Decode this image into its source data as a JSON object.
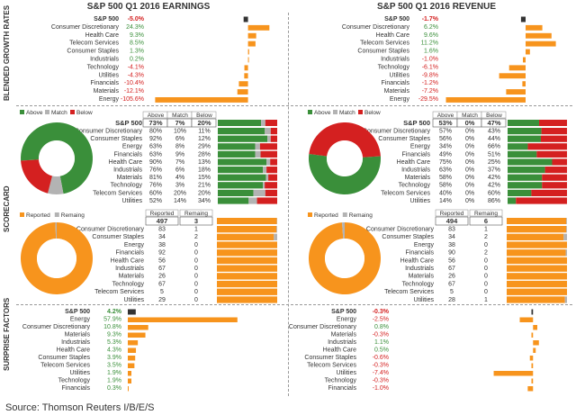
{
  "titles": {
    "earnings": "S&P 500 Q1 2016 EARNINGS",
    "revenue": "S&P 500 Q1 2016 REVENUE"
  },
  "row_labels": {
    "growth": "BLENDED GROWTH RATES",
    "scorecard": "SCORECARD",
    "surprise": "SURPRISE FACTORS"
  },
  "source": "Source: Thomson Reuters I/B/E/S",
  "colors": {
    "orange": "#f7941d",
    "green": "#3a8f3a",
    "gray": "#b3b3b3",
    "red": "#d42020",
    "dark": "#333333"
  },
  "legend": {
    "above": "Above",
    "match": "Match",
    "below": "Below",
    "reported": "Reported",
    "remaining": "Remaing"
  },
  "chart_data": [
    {
      "id": "earnings_growth",
      "type": "bar",
      "orientation": "horizontal",
      "title": "Blended Growth Rates - Earnings",
      "categories": [
        "S&P 500",
        "Consumer Discretionary",
        "Health Care",
        "Telecom Services",
        "Consumer Staples",
        "Industrials",
        "Technology",
        "Utilities",
        "Financials",
        "Materials",
        "Energy"
      ],
      "labels": [
        "-5.0%",
        "24.3%",
        "9.3%",
        "8.5%",
        "1.3%",
        "0.2%",
        "-4.1%",
        "-4.3%",
        "-10.4%",
        "-12.1%",
        "-105.6%"
      ],
      "values": [
        -5.0,
        24.3,
        9.3,
        8.5,
        1.3,
        0.2,
        -4.1,
        -4.3,
        -10.4,
        -12.1,
        -105.6
      ],
      "xlim": [
        -106,
        25
      ]
    },
    {
      "id": "revenue_growth",
      "type": "bar",
      "orientation": "horizontal",
      "title": "Blended Growth Rates - Revenue",
      "categories": [
        "S&P 500",
        "Consumer Discretionary",
        "Health Care",
        "Telecom Services",
        "Consumer Staples",
        "Industrials",
        "Technology",
        "Utilities",
        "Financials",
        "Materials",
        "Energy"
      ],
      "labels": [
        "-1.7%",
        "6.2%",
        "9.6%",
        "11.2%",
        "1.6%",
        "-1.0%",
        "-6.1%",
        "-9.8%",
        "-1.2%",
        "-7.2%",
        "-29.5%"
      ],
      "values": [
        -1.7,
        6.2,
        9.6,
        11.2,
        1.6,
        -1.0,
        -6.1,
        -9.8,
        -1.2,
        -7.2,
        -29.5
      ],
      "xlim": [
        -30,
        12
      ]
    },
    {
      "id": "earnings_scorecard",
      "type": "table",
      "title": "Scorecard - Earnings",
      "header": [
        "S&P 500",
        "73%",
        "7%",
        "20%"
      ],
      "columns": [
        "Above",
        "Match",
        "Below"
      ],
      "categories": [
        "Consumer Discretionary",
        "Consumer Staples",
        "Energy",
        "Financials",
        "Health Care",
        "Industrials",
        "Materials",
        "Technology",
        "Telecom Services",
        "Utilities"
      ],
      "above": [
        "80%",
        "92%",
        "63%",
        "63%",
        "90%",
        "76%",
        "81%",
        "76%",
        "60%",
        "52%"
      ],
      "match": [
        "10%",
        "6%",
        "8%",
        "9%",
        "7%",
        "6%",
        "4%",
        "3%",
        "20%",
        "14%"
      ],
      "below": [
        "11%",
        "12%",
        "29%",
        "28%",
        "13%",
        "18%",
        "15%",
        "21%",
        "20%",
        "34%"
      ],
      "pie": [
        73,
        7,
        20
      ]
    },
    {
      "id": "revenue_scorecard",
      "type": "table",
      "title": "Scorecard - Revenue",
      "header": [
        "S&P 500",
        "53%",
        "0%",
        "47%"
      ],
      "columns": [
        "Above",
        "Match",
        "Below"
      ],
      "categories": [
        "Consumer Discretionary",
        "Consumer Staples",
        "Energy",
        "Financials",
        "Health Care",
        "Industrials",
        "Materials",
        "Technology",
        "Telecom Services",
        "Utilities"
      ],
      "above": [
        "57%",
        "56%",
        "34%",
        "49%",
        "75%",
        "63%",
        "58%",
        "58%",
        "40%",
        "14%"
      ],
      "match": [
        "0%",
        "0%",
        "0%",
        "0%",
        "0%",
        "0%",
        "0%",
        "0%",
        "0%",
        "0%"
      ],
      "below": [
        "43%",
        "44%",
        "66%",
        "51%",
        "25%",
        "37%",
        "42%",
        "42%",
        "60%",
        "86%"
      ],
      "pie": [
        53,
        0,
        47
      ]
    },
    {
      "id": "earnings_reported",
      "type": "table",
      "title": "Reported vs Remaining - Earnings",
      "header": [
        "497",
        "3"
      ],
      "columns": [
        "Reported",
        "Remaing"
      ],
      "categories": [
        "Consumer Discretionary",
        "Consumer Staples",
        "Energy",
        "Financials",
        "Health Care",
        "Industrials",
        "Materials",
        "Technology",
        "Telecom Services",
        "Utilities"
      ],
      "reported": [
        "83",
        "34",
        "38",
        "92",
        "56",
        "67",
        "26",
        "67",
        "5",
        "29"
      ],
      "remaining": [
        "1",
        "2",
        "0",
        "0",
        "0",
        "0",
        "0",
        "0",
        "0",
        "0"
      ],
      "pie": [
        497,
        3
      ]
    },
    {
      "id": "revenue_reported",
      "type": "table",
      "title": "Reported vs Remaining - Revenue",
      "header": [
        "494",
        "6"
      ],
      "columns": [
        "Reported",
        "Remaing"
      ],
      "categories": [
        "Consumer Discretionary",
        "Consumer Staples",
        "Energy",
        "Financials",
        "Health Care",
        "Industrials",
        "Materials",
        "Technology",
        "Telecom Services",
        "Utilities"
      ],
      "reported": [
        "83",
        "34",
        "38",
        "90",
        "56",
        "67",
        "26",
        "67",
        "5",
        "28"
      ],
      "remaining": [
        "1",
        "2",
        "0",
        "2",
        "0",
        "0",
        "0",
        "0",
        "0",
        "1"
      ],
      "pie": [
        494,
        6
      ]
    },
    {
      "id": "earnings_surprise",
      "type": "bar",
      "orientation": "horizontal",
      "title": "Surprise Factors - Earnings",
      "categories": [
        "S&P 500",
        "Energy",
        "Consumer Discretionary",
        "Materials",
        "Industrials",
        "Health Care",
        "Consumer Staples",
        "Telecom Services",
        "Utilities",
        "Technology",
        "Financials"
      ],
      "labels": [
        "4.2%",
        "57.9%",
        "10.8%",
        "9.3%",
        "5.3%",
        "4.3%",
        "3.9%",
        "3.5%",
        "1.9%",
        "1.9%",
        "0.3%"
      ],
      "values": [
        4.2,
        57.9,
        10.8,
        9.3,
        5.3,
        4.3,
        3.9,
        3.5,
        1.9,
        1.9,
        0.3
      ],
      "xlim": [
        0,
        58
      ]
    },
    {
      "id": "revenue_surprise",
      "type": "bar",
      "orientation": "horizontal",
      "title": "Surprise Factors - Revenue",
      "categories": [
        "S&P 500",
        "Energy",
        "Consumer Discretionary",
        "Materials",
        "Industrials",
        "Health Care",
        "Consumer Staples",
        "Telecom Services",
        "Utilities",
        "Technology",
        "Financials"
      ],
      "labels": [
        "-0.3%",
        "-2.5%",
        "0.8%",
        "-0.3%",
        "1.1%",
        "0.5%",
        "-0.6%",
        "-0.3%",
        "-7.4%",
        "-0.3%",
        "-1.0%"
      ],
      "values": [
        -0.3,
        -2.5,
        0.8,
        -0.3,
        1.1,
        0.5,
        -0.6,
        -0.3,
        -7.4,
        -0.3,
        -1.0
      ],
      "xlim": [
        -8,
        3
      ]
    }
  ]
}
